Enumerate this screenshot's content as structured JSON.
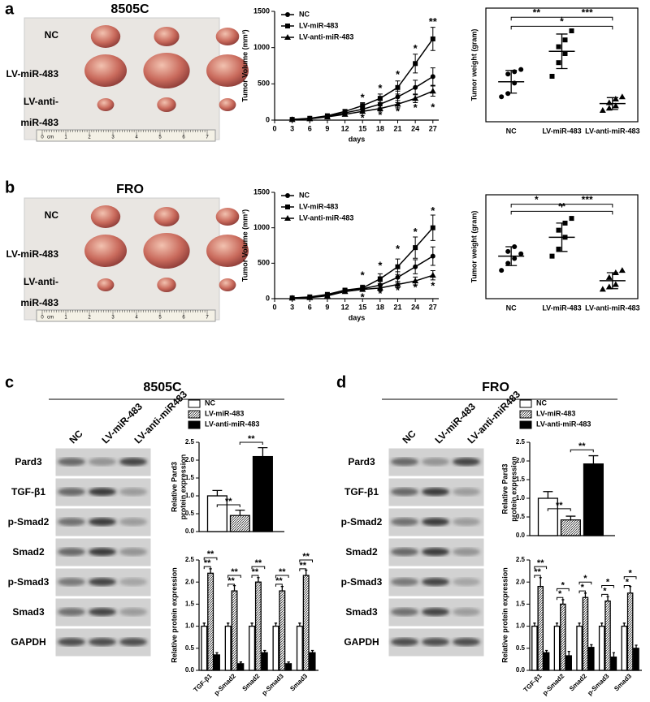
{
  "panel_labels": [
    "a",
    "b",
    "c",
    "d"
  ],
  "photos": [
    {
      "title": "8505C",
      "rows": [
        "NC",
        "LV-miR-483",
        "LV-anti-",
        "miR-483"
      ],
      "ruler": [
        "0",
        "cm",
        "1",
        "2",
        "3",
        "4",
        "5",
        "6",
        "7"
      ]
    },
    {
      "title": "FRO",
      "rows": [
        "NC",
        "LV-miR-483",
        "LV-anti-",
        "miR-483"
      ],
      "ruler": [
        "0",
        "cm",
        "1",
        "2",
        "3",
        "4",
        "5",
        "6",
        "7"
      ]
    }
  ],
  "blots": [
    {
      "title": "8505C",
      "lanes": [
        "NC",
        "LV-miR-483",
        "LV-anti-miR483"
      ],
      "rows": [
        "Pard3",
        "TGF-β1",
        "p-Smad2",
        "Smad2",
        "p-Smad3",
        "Smad3",
        "GAPDH"
      ]
    },
    {
      "title": "FRO",
      "lanes": [
        "NC",
        "LV-miR-483",
        "LV-anti-miR483"
      ],
      "rows": [
        "Pard3",
        "TGF-β1",
        "p-Smad2",
        "Smad2",
        "p-Smad3",
        "Smad3",
        "GAPDH"
      ]
    }
  ],
  "chart_data": [
    {
      "type": "line",
      "ylabel": "Tumor Volume (mm³)",
      "xlabel": "days",
      "legend": "upper left",
      "x": [
        3,
        6,
        9,
        12,
        15,
        18,
        21,
        24,
        27
      ],
      "xlim": [
        0,
        28
      ],
      "xticks": [
        0,
        3,
        6,
        9,
        12,
        15,
        18,
        21,
        24,
        27
      ],
      "ylim": [
        0,
        1500
      ],
      "yticks": [
        0,
        500,
        1000,
        1500
      ],
      "series": [
        {
          "name": "NC",
          "color": "#000000",
          "marker": "circle",
          "values": [
            10,
            20,
            50,
            100,
            150,
            220,
            320,
            450,
            600
          ],
          "errors": [
            3,
            5,
            8,
            15,
            30,
            50,
            80,
            100,
            120
          ]
        },
        {
          "name": "LV-miR-483",
          "color": "#000000",
          "marker": "square",
          "values": [
            10,
            25,
            60,
            120,
            200,
            300,
            450,
            780,
            1120
          ],
          "errors": [
            3,
            5,
            10,
            20,
            40,
            60,
            90,
            130,
            160
          ]
        },
        {
          "name": "LV-anti-miR-483",
          "color": "#000000",
          "marker": "triangle",
          "values": [
            8,
            18,
            45,
            80,
            120,
            160,
            220,
            300,
            400
          ],
          "errors": [
            2,
            4,
            8,
            15,
            25,
            35,
            50,
            60,
            70
          ]
        }
      ],
      "annotations": [
        {
          "x": 15,
          "y": 300,
          "text": "*"
        },
        {
          "x": 18,
          "y": 430,
          "text": "*"
        },
        {
          "x": 21,
          "y": 620,
          "text": "*"
        },
        {
          "x": 24,
          "y": 980,
          "text": "*"
        },
        {
          "x": 27,
          "y": 1350,
          "text": "**"
        },
        {
          "x": 15,
          "y": 20,
          "text": "*"
        },
        {
          "x": 18,
          "y": 60,
          "text": "*"
        },
        {
          "x": 21,
          "y": 110,
          "text": "*"
        },
        {
          "x": 24,
          "y": 160,
          "text": "*"
        },
        {
          "x": 27,
          "y": 170,
          "text": "*"
        }
      ]
    },
    {
      "type": "dot",
      "ylabel": "Tumor weight (gram)",
      "categories": [
        "NC",
        "LV-miR-483",
        "LV-anti-miR-483"
      ],
      "ylim": [
        0,
        2.5
      ],
      "color": "#000000",
      "points": [
        [
          0.55,
          0.62,
          0.85,
          1.05,
          1.1,
          1.15
        ],
        [
          1.0,
          1.3,
          1.5,
          1.65,
          1.8,
          2.0
        ],
        [
          0.25,
          0.3,
          0.35,
          0.42,
          0.5,
          0.55
        ]
      ],
      "means": [
        0.88,
        1.55,
        0.4
      ],
      "sd": [
        0.25,
        0.38,
        0.13
      ],
      "brackets": [
        {
          "from": 0,
          "to": 1,
          "y": 2.3,
          "text": "**"
        },
        {
          "from": 1,
          "to": 2,
          "y": 2.3,
          "text": "***"
        },
        {
          "from": 0,
          "to": 2,
          "y": 2.1,
          "text": "*"
        }
      ]
    },
    {
      "type": "line",
      "ylabel": "Tumor Volume (mm³)",
      "xlabel": "days",
      "legend": "upper left",
      "x": [
        3,
        6,
        9,
        12,
        15,
        18,
        21,
        24,
        27
      ],
      "xlim": [
        0,
        28
      ],
      "xticks": [
        0,
        3,
        6,
        9,
        12,
        15,
        18,
        21,
        24,
        27
      ],
      "ylim": [
        0,
        1500
      ],
      "yticks": [
        0,
        500,
        1000,
        1500
      ],
      "series": [
        {
          "name": "NC",
          "color": "#000000",
          "marker": "circle",
          "values": [
            10,
            20,
            50,
            120,
            140,
            190,
            300,
            450,
            600
          ],
          "errors": [
            3,
            5,
            8,
            15,
            30,
            50,
            80,
            100,
            130
          ]
        },
        {
          "name": "LV-miR-483",
          "color": "#000000",
          "marker": "square",
          "values": [
            10,
            25,
            60,
            120,
            150,
            280,
            450,
            720,
            1000
          ],
          "errors": [
            3,
            5,
            10,
            20,
            40,
            70,
            110,
            150,
            180
          ]
        },
        {
          "name": "LV-anti-miR-483",
          "color": "#000000",
          "marker": "triangle",
          "values": [
            8,
            15,
            40,
            100,
            130,
            150,
            200,
            250,
            330
          ],
          "errors": [
            2,
            4,
            8,
            15,
            25,
            35,
            45,
            55,
            65
          ]
        }
      ],
      "annotations": [
        {
          "x": 15,
          "y": 320,
          "text": "*"
        },
        {
          "x": 18,
          "y": 460,
          "text": "*"
        },
        {
          "x": 21,
          "y": 690,
          "text": "*"
        },
        {
          "x": 24,
          "y": 930,
          "text": "*"
        },
        {
          "x": 27,
          "y": 1230,
          "text": "*"
        },
        {
          "x": 15,
          "y": 10,
          "text": "*"
        },
        {
          "x": 18,
          "y": 60,
          "text": "*"
        },
        {
          "x": 21,
          "y": 110,
          "text": "*"
        },
        {
          "x": 24,
          "y": 150,
          "text": "*"
        },
        {
          "x": 27,
          "y": 170,
          "text": "*"
        }
      ]
    },
    {
      "type": "dot",
      "ylabel": "Tumor weight (gram)",
      "categories": [
        "NC",
        "LV-miR-483",
        "LV-anti-miR-483"
      ],
      "ylim": [
        0,
        2.2
      ],
      "color": "#000000",
      "points": [
        [
          0.6,
          0.75,
          0.85,
          1.0,
          1.1,
          0.95
        ],
        [
          0.9,
          1.05,
          1.3,
          1.45,
          1.6,
          1.7
        ],
        [
          0.2,
          0.25,
          0.3,
          0.45,
          0.55,
          0.6
        ]
      ],
      "means": [
        0.9,
        1.3,
        0.38
      ],
      "sd": [
        0.2,
        0.3,
        0.17
      ],
      "brackets": [
        {
          "from": 0,
          "to": 1,
          "y": 2.0,
          "text": "*"
        },
        {
          "from": 1,
          "to": 2,
          "y": 2.0,
          "text": "***"
        },
        {
          "from": 0,
          "to": 2,
          "y": 1.85,
          "text": "**"
        }
      ]
    },
    {
      "type": "bar",
      "ylabel": [
        "Relative Pard3",
        "protein expression"
      ],
      "categories": [
        null
      ],
      "ylim": [
        0,
        2.5
      ],
      "yticks": [
        {
          "value": 0,
          "label": "0.0"
        },
        {
          "value": 0.5,
          "label": "0.5"
        },
        {
          "value": 1,
          "label": "1.0"
        },
        {
          "value": 1.5,
          "label": "1.5"
        },
        {
          "value": 2,
          "label": "2.0"
        },
        {
          "value": 2.5,
          "label": "2.5"
        }
      ],
      "series": [
        {
          "name": "NC",
          "color": "#ffffff",
          "values": [
            1.0
          ],
          "errors": [
            0.15
          ]
        },
        {
          "name": "LV-miR-483",
          "color": "#888888",
          "pattern": "hatch",
          "values": [
            0.45
          ],
          "errors": [
            0.15
          ]
        },
        {
          "name": "LV-anti-miR-483",
          "color": "#000000",
          "values": [
            2.1
          ],
          "errors": [
            0.25
          ]
        }
      ],
      "brackets": [
        {
          "group": 0,
          "from": 0,
          "to": 1,
          "y": 0.75,
          "text": "**"
        },
        {
          "group": 0,
          "from": 1,
          "to": 2,
          "y": 2.5,
          "text": "**"
        }
      ]
    },
    {
      "type": "bar",
      "ylabel": "Relative protein expression",
      "categories": [
        "TGF-β1",
        "p-Smad2",
        "Smad2",
        "p-Smad3",
        "Smad3"
      ],
      "ylim": [
        0,
        2.5
      ],
      "yticks": [
        {
          "value": 0,
          "label": "0.0"
        },
        {
          "value": 0.5,
          "label": "0.5"
        },
        {
          "value": 1,
          "label": "1.0"
        },
        {
          "value": 1.5,
          "label": "1.5"
        },
        {
          "value": 2,
          "label": "2.0"
        },
        {
          "value": 2.5,
          "label": "2.5"
        }
      ],
      "series": [
        {
          "color": "#ffffff",
          "values": [
            1.0,
            1.0,
            1.0,
            1.0,
            1.0
          ],
          "errors": [
            0.07,
            0.07,
            0.07,
            0.07,
            0.07
          ]
        },
        {
          "color": "#888888",
          "pattern": "hatch",
          "values": [
            2.2,
            1.8,
            2.0,
            1.8,
            2.15
          ],
          "errors": [
            0.1,
            0.12,
            0.1,
            0.1,
            0.12
          ]
        },
        {
          "color": "#000000",
          "values": [
            0.35,
            0.15,
            0.4,
            0.15,
            0.4
          ],
          "errors": [
            0.05,
            0.04,
            0.05,
            0.04,
            0.05
          ]
        }
      ],
      "brackets": [
        {
          "group": 0,
          "from": 0,
          "to": 1,
          "y": 2.35,
          "text": "**"
        },
        {
          "group": 0,
          "from": 0,
          "to": 2,
          "y": 2.55,
          "text": "**"
        },
        {
          "group": 1,
          "from": 0,
          "to": 1,
          "y": 1.95,
          "text": "**"
        },
        {
          "group": 1,
          "from": 0,
          "to": 2,
          "y": 2.15,
          "text": "**"
        },
        {
          "group": 2,
          "from": 0,
          "to": 1,
          "y": 2.15,
          "text": "**"
        },
        {
          "group": 2,
          "from": 0,
          "to": 2,
          "y": 2.35,
          "text": "**"
        },
        {
          "group": 3,
          "from": 0,
          "to": 1,
          "y": 1.95,
          "text": "**"
        },
        {
          "group": 3,
          "from": 0,
          "to": 2,
          "y": 2.15,
          "text": "**"
        },
        {
          "group": 4,
          "from": 0,
          "to": 1,
          "y": 2.3,
          "text": "**"
        },
        {
          "group": 4,
          "from": 0,
          "to": 2,
          "y": 2.5,
          "text": "**"
        }
      ]
    },
    {
      "type": "bar",
      "ylabel": [
        "Relative Pard3",
        "protein expression"
      ],
      "categories": [
        null
      ],
      "ylim": [
        0,
        2.5
      ],
      "yticks": [
        {
          "value": 0,
          "label": "0.0"
        },
        {
          "value": 0.5,
          "label": "0.5"
        },
        {
          "value": 1,
          "label": "1.0"
        },
        {
          "value": 1.5,
          "label": "1.5"
        },
        {
          "value": 2,
          "label": "2.0"
        },
        {
          "value": 2.5,
          "label": "2.5"
        }
      ],
      "series": [
        {
          "name": "NC",
          "color": "#ffffff",
          "values": [
            1.0
          ],
          "errors": [
            0.18
          ]
        },
        {
          "name": "LV-miR-483",
          "color": "#888888",
          "pattern": "hatch",
          "values": [
            0.42
          ],
          "errors": [
            0.1
          ]
        },
        {
          "name": "LV-anti-miR-483",
          "color": "#000000",
          "values": [
            1.92
          ],
          "errors": [
            0.22
          ]
        }
      ],
      "brackets": [
        {
          "group": 0,
          "from": 0,
          "to": 1,
          "y": 0.72,
          "text": "**"
        },
        {
          "group": 0,
          "from": 1,
          "to": 2,
          "y": 2.3,
          "text": "**"
        }
      ]
    },
    {
      "type": "bar",
      "ylabel": "Relative protein expression",
      "categories": [
        "TGF-β1",
        "p-Smad2",
        "Smad2",
        "p-Smad3",
        "Smad3"
      ],
      "ylim": [
        0,
        2.5
      ],
      "yticks": [
        {
          "value": 0,
          "label": "0.0"
        },
        {
          "value": 0.5,
          "label": "0.5"
        },
        {
          "value": 1,
          "label": "1.0"
        },
        {
          "value": 1.5,
          "label": "1.5"
        },
        {
          "value": 2,
          "label": "2.0"
        },
        {
          "value": 2.5,
          "label": "2.5"
        }
      ],
      "series": [
        {
          "color": "#ffffff",
          "values": [
            1.0,
            1.0,
            1.0,
            1.0,
            1.0
          ],
          "errors": [
            0.07,
            0.07,
            0.07,
            0.07,
            0.07
          ]
        },
        {
          "color": "#888888",
          "pattern": "hatch",
          "values": [
            1.9,
            1.5,
            1.65,
            1.57,
            1.75
          ],
          "errors": [
            0.2,
            0.1,
            0.1,
            0.1,
            0.15
          ]
        },
        {
          "color": "#000000",
          "values": [
            0.4,
            0.33,
            0.52,
            0.3,
            0.5
          ],
          "errors": [
            0.05,
            0.1,
            0.06,
            0.1,
            0.07
          ]
        }
      ],
      "brackets": [
        {
          "group": 0,
          "from": 0,
          "to": 1,
          "y": 2.15,
          "text": "**"
        },
        {
          "group": 0,
          "from": 0,
          "to": 2,
          "y": 2.35,
          "text": "**"
        },
        {
          "group": 1,
          "from": 0,
          "to": 1,
          "y": 1.65,
          "text": "*"
        },
        {
          "group": 1,
          "from": 0,
          "to": 2,
          "y": 1.85,
          "text": "*"
        },
        {
          "group": 2,
          "from": 0,
          "to": 1,
          "y": 1.8,
          "text": "*"
        },
        {
          "group": 2,
          "from": 0,
          "to": 2,
          "y": 2.0,
          "text": "*"
        },
        {
          "group": 3,
          "from": 0,
          "to": 1,
          "y": 1.72,
          "text": "*"
        },
        {
          "group": 3,
          "from": 0,
          "to": 2,
          "y": 1.92,
          "text": "*"
        },
        {
          "group": 4,
          "from": 0,
          "to": 1,
          "y": 1.92,
          "text": "*"
        },
        {
          "group": 4,
          "from": 0,
          "to": 2,
          "y": 2.12,
          "text": "*"
        }
      ]
    }
  ]
}
